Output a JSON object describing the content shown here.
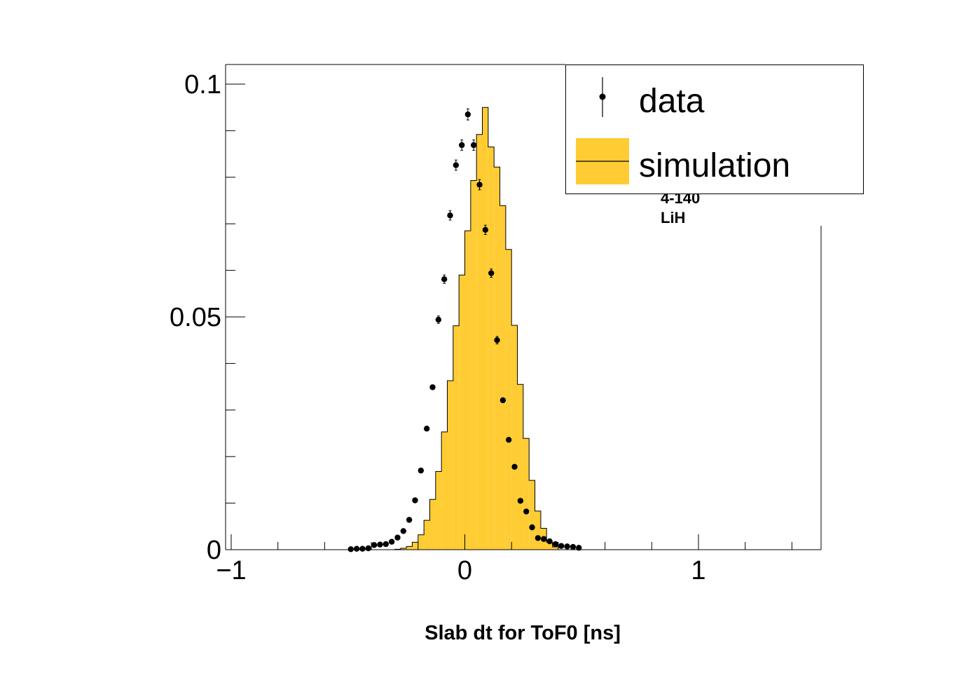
{
  "chart_data": {
    "type": "bar",
    "title": "",
    "xlabel": "Slab dt for ToF0 [ns]",
    "ylabel": "",
    "xlim": [
      -1.05,
      1.5
    ],
    "ylim": [
      0,
      0.1045
    ],
    "x_ticks": [
      -1,
      0,
      1
    ],
    "x_tick_labels": [
      "−1",
      "0",
      "1"
    ],
    "y_ticks": [
      0,
      0.05,
      0.1
    ],
    "y_tick_labels": [
      "0",
      "0.05",
      "0.1"
    ],
    "grid": false,
    "legend": {
      "placement": "top-right",
      "entries": [
        "data",
        "simulation"
      ]
    },
    "annotations": [
      "4-140",
      "LiH"
    ],
    "colors": {
      "simulation": "#ffcc33",
      "data": "#000000",
      "frame": "#000000"
    },
    "series": [
      {
        "name": "simulation",
        "kind": "histogram",
        "bin_width": 0.025,
        "bin_starts": [
          -0.3,
          -0.275,
          -0.25,
          -0.225,
          -0.2,
          -0.175,
          -0.15,
          -0.125,
          -0.1,
          -0.075,
          -0.05,
          -0.025,
          0.0,
          0.025,
          0.05,
          0.075,
          0.1,
          0.125,
          0.15,
          0.175,
          0.2,
          0.225,
          0.25,
          0.275,
          0.3,
          0.325,
          0.35,
          0.375
        ],
        "values": [
          0.0001,
          0.0003,
          0.0007,
          0.0016,
          0.0032,
          0.0063,
          0.0108,
          0.0168,
          0.0253,
          0.0363,
          0.0481,
          0.059,
          0.0685,
          0.0793,
          0.0892,
          0.095,
          0.0865,
          0.0822,
          0.0739,
          0.0645,
          0.0482,
          0.0355,
          0.0239,
          0.0149,
          0.0083,
          0.0046,
          0.0016,
          0.0006
        ]
      },
      {
        "name": "data",
        "kind": "points",
        "x": [
          -0.488,
          -0.463,
          -0.438,
          -0.413,
          -0.388,
          -0.363,
          -0.338,
          -0.313,
          -0.288,
          -0.263,
          -0.238,
          -0.213,
          -0.188,
          -0.163,
          -0.138,
          -0.113,
          -0.088,
          -0.063,
          -0.038,
          -0.013,
          0.013,
          0.038,
          0.063,
          0.088,
          0.113,
          0.138,
          0.163,
          0.188,
          0.213,
          0.238,
          0.263,
          0.288,
          0.313,
          0.338,
          0.363,
          0.388,
          0.413,
          0.438,
          0.463,
          0.488
        ],
        "y": [
          0.0001,
          0.0002,
          0.0002,
          0.0003,
          0.001,
          0.0011,
          0.0012,
          0.0017,
          0.0026,
          0.004,
          0.0064,
          0.0106,
          0.017,
          0.026,
          0.0349,
          0.0494,
          0.0581,
          0.0718,
          0.0826,
          0.0869,
          0.0935,
          0.0869,
          0.0784,
          0.0687,
          0.0594,
          0.045,
          0.0321,
          0.0236,
          0.0178,
          0.0105,
          0.0082,
          0.0048,
          0.0025,
          0.0023,
          0.0018,
          0.0012,
          0.0008,
          0.0007,
          0.0006,
          0.0004
        ],
        "errors": [
          0.0001,
          0.0001,
          0.0001,
          0.0001,
          0.0002,
          0.0002,
          0.0002,
          0.0002,
          0.0002,
          0.0003,
          0.0003,
          0.0004,
          0.0005,
          0.0006,
          0.0007,
          0.0008,
          0.0009,
          0.001,
          0.0011,
          0.0011,
          0.0012,
          0.0011,
          0.0011,
          0.001,
          0.0009,
          0.0008,
          0.0007,
          0.0006,
          0.0005,
          0.0004,
          0.0004,
          0.0003,
          0.0002,
          0.0002,
          0.0002,
          0.0001,
          0.0001,
          0.0001,
          0.0001,
          0.0001
        ]
      }
    ]
  }
}
